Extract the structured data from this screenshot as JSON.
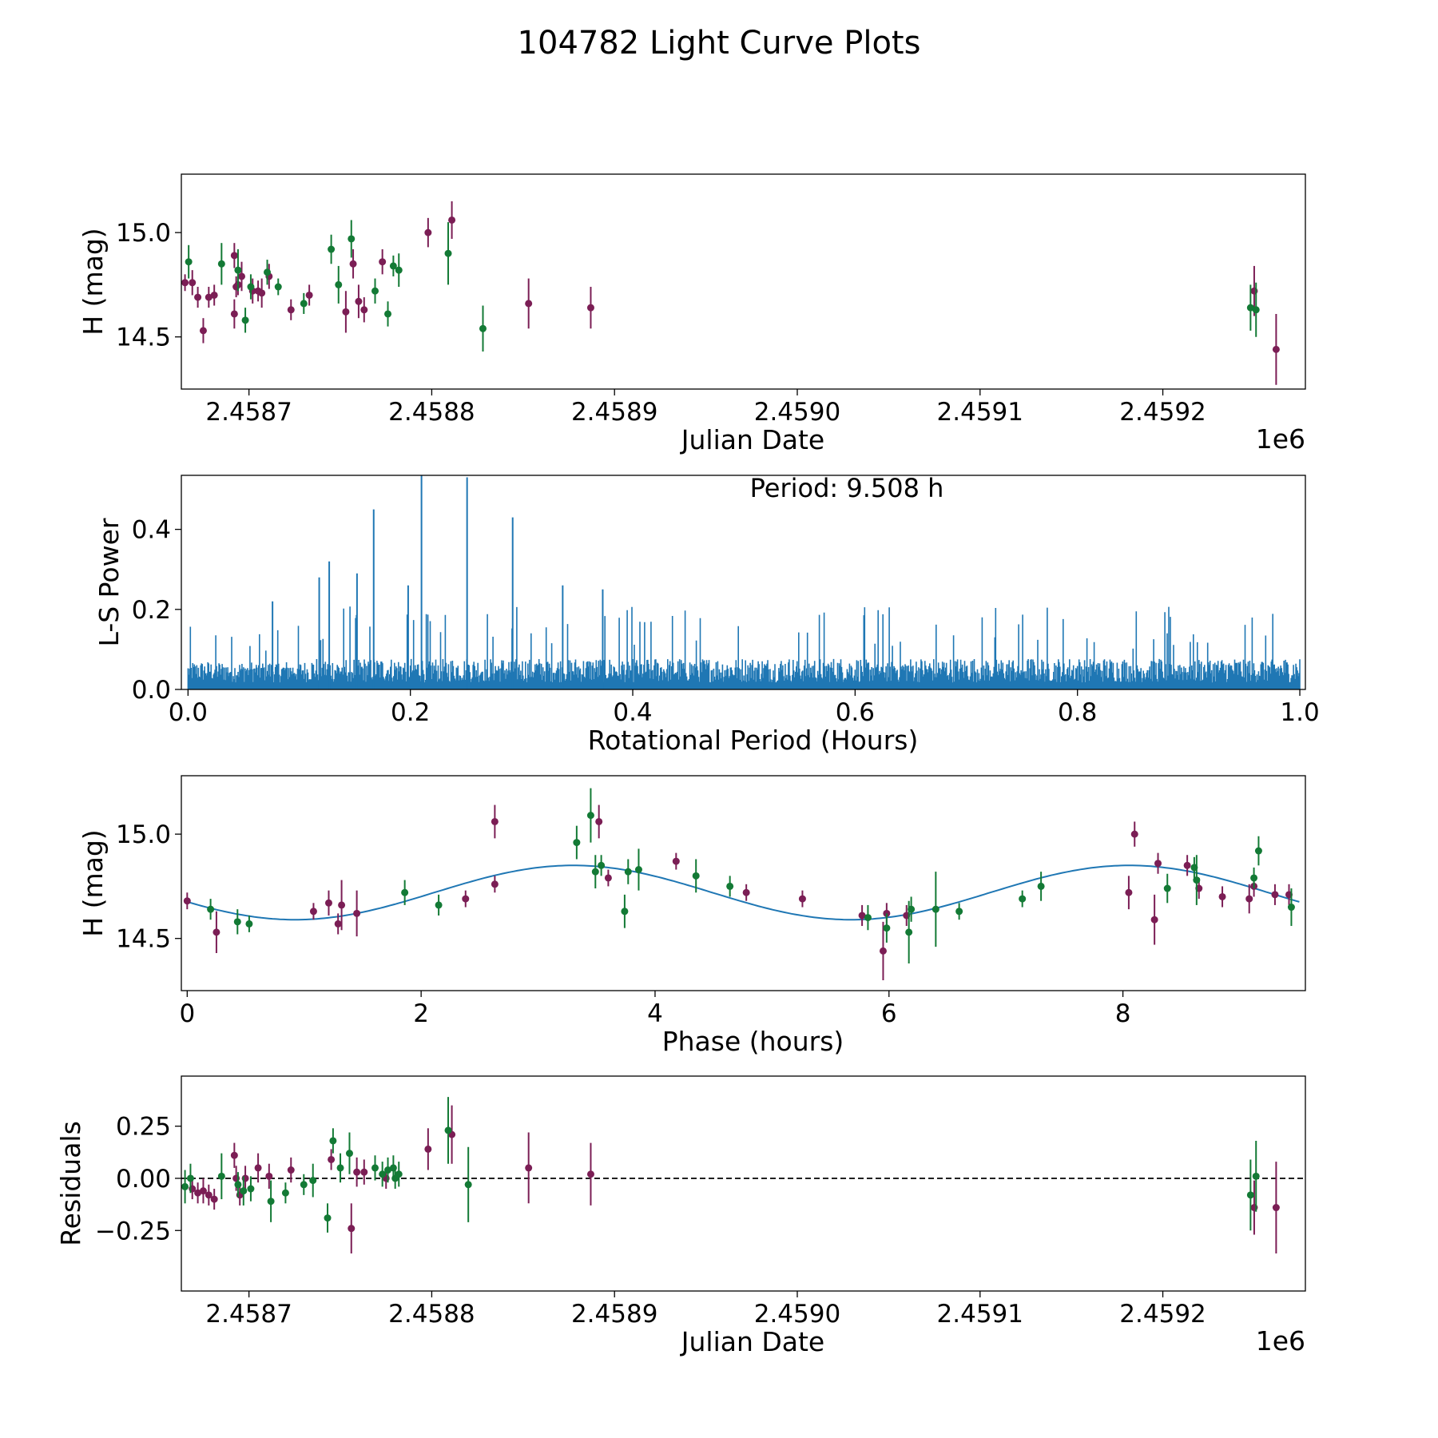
{
  "figure_title": "104782 Light Curve Plots",
  "colors": {
    "red": "#7b1e55",
    "green": "#137a35",
    "blue": "#1f77b4"
  },
  "chart_data": [
    {
      "id": "lightcurve",
      "type": "scatter",
      "xlabel": "Julian Date",
      "ylabel": "H (mag)",
      "xlim": [
        2458663,
        2459278
      ],
      "ylim": [
        14.25,
        15.28
      ],
      "x_ticks": [
        2458700,
        2458800,
        2458900,
        2459000,
        2459100,
        2459200
      ],
      "x_tick_labels": [
        "2.4587",
        "2.4588",
        "2.4589",
        "2.4590",
        "2.4591",
        "2.4592"
      ],
      "x_offset_label": "1e6",
      "y_ticks": [
        14.5,
        15.0
      ],
      "y_tick_labels": [
        "14.5",
        "15.0"
      ],
      "series": [
        {
          "name": "red",
          "x": [
            2458665,
            2458669,
            2458672,
            2458675,
            2458678,
            2458681,
            2458692,
            2458692,
            2458693,
            2458694,
            2458696,
            2458702,
            2458705,
            2458707,
            2458711,
            2458723,
            2458733,
            2458753,
            2458757,
            2458760,
            2458763,
            2458773,
            2458798,
            2458811,
            2458853,
            2458887,
            2459250,
            2459262
          ],
          "y": [
            14.76,
            14.76,
            14.69,
            14.53,
            14.69,
            14.7,
            14.89,
            14.61,
            14.74,
            14.75,
            14.79,
            14.72,
            14.72,
            14.71,
            14.79,
            14.63,
            14.7,
            14.62,
            14.85,
            14.67,
            14.63,
            14.86,
            15.0,
            15.06,
            14.66,
            14.64,
            14.72,
            14.44
          ],
          "err": [
            0.04,
            0.06,
            0.05,
            0.06,
            0.05,
            0.05,
            0.06,
            0.07,
            0.05,
            0.05,
            0.07,
            0.06,
            0.05,
            0.07,
            0.06,
            0.05,
            0.05,
            0.1,
            0.07,
            0.08,
            0.06,
            0.06,
            0.07,
            0.09,
            0.12,
            0.1,
            0.12,
            0.17
          ]
        },
        {
          "name": "green",
          "x": [
            2458667,
            2458685,
            2458694,
            2458698,
            2458701,
            2458710,
            2458716,
            2458730,
            2458745,
            2458749,
            2458756,
            2458769,
            2458776,
            2458779,
            2458782,
            2458809,
            2458828,
            2459248,
            2459251
          ],
          "y": [
            14.86,
            14.85,
            14.82,
            14.58,
            14.74,
            14.81,
            14.74,
            14.66,
            14.92,
            14.75,
            14.97,
            14.72,
            14.61,
            14.84,
            14.82,
            14.9,
            14.54,
            14.64,
            14.63
          ],
          "err": [
            0.08,
            0.1,
            0.1,
            0.06,
            0.06,
            0.06,
            0.04,
            0.05,
            0.07,
            0.09,
            0.09,
            0.06,
            0.06,
            0.05,
            0.08,
            0.15,
            0.11,
            0.11,
            0.13
          ]
        }
      ]
    },
    {
      "id": "periodogram",
      "type": "line",
      "xlabel": "Rotational Period (Hours)",
      "ylabel": "L-S Power",
      "annotation": "Period: 9.508 h",
      "xlim": [
        -0.006,
        1.005
      ],
      "ylim": [
        0.0,
        0.535
      ],
      "x_ticks": [
        0.0,
        0.2,
        0.4,
        0.6,
        0.8,
        1.0
      ],
      "x_tick_labels": [
        "0.0",
        "0.2",
        "0.4",
        "0.6",
        "0.8",
        "1.0"
      ],
      "y_ticks": [
        0.0,
        0.2,
        0.4
      ],
      "y_tick_labels": [
        "0.0",
        "0.2",
        "0.4"
      ],
      "x_range": [
        0.0,
        1.0
      ],
      "baseline_power": 0.07,
      "peaks": [
        {
          "x": 0.076,
          "y": 0.22
        },
        {
          "x": 0.118,
          "y": 0.28
        },
        {
          "x": 0.127,
          "y": 0.32
        },
        {
          "x": 0.152,
          "y": 0.29
        },
        {
          "x": 0.167,
          "y": 0.45
        },
        {
          "x": 0.198,
          "y": 0.26
        },
        {
          "x": 0.21,
          "y": 0.54
        },
        {
          "x": 0.251,
          "y": 0.53
        },
        {
          "x": 0.292,
          "y": 0.43
        },
        {
          "x": 0.337,
          "y": 0.26
        },
        {
          "x": 0.373,
          "y": 0.25
        }
      ]
    },
    {
      "id": "phased",
      "type": "scatter",
      "xlabel": "Phase (hours)",
      "ylabel": "H (mag)",
      "xlim": [
        -0.05,
        9.56
      ],
      "ylim": [
        14.25,
        15.28
      ],
      "x_ticks": [
        0,
        2,
        4,
        6,
        8
      ],
      "x_tick_labels": [
        "0",
        "2",
        "4",
        "6",
        "8"
      ],
      "y_ticks": [
        14.5,
        15.0
      ],
      "y_tick_labels": [
        "14.5",
        "15.0"
      ],
      "fit": {
        "period": 9.508,
        "mean": 14.72,
        "amplitude": 0.13,
        "peak_phase": 3.3
      },
      "series": [
        {
          "name": "red",
          "x": [
            0.0,
            0.25,
            1.08,
            1.21,
            1.29,
            1.32,
            1.45,
            2.38,
            2.63,
            2.63,
            3.52,
            3.6,
            4.18,
            4.78,
            5.26,
            5.77,
            5.95,
            5.98,
            6.15,
            8.05,
            8.1,
            8.27,
            8.3,
            8.55,
            8.65,
            8.85,
            9.08,
            9.12,
            9.3,
            9.42
          ],
          "y": [
            14.68,
            14.53,
            14.63,
            14.67,
            14.57,
            14.66,
            14.62,
            14.69,
            14.76,
            15.06,
            15.06,
            14.79,
            14.87,
            14.72,
            14.69,
            14.61,
            14.44,
            14.62,
            14.61,
            14.72,
            15.0,
            14.59,
            14.86,
            14.85,
            14.74,
            14.7,
            14.69,
            14.75,
            14.71,
            14.71
          ],
          "err": [
            0.04,
            0.1,
            0.04,
            0.06,
            0.05,
            0.12,
            0.11,
            0.04,
            0.04,
            0.08,
            0.08,
            0.04,
            0.04,
            0.04,
            0.04,
            0.05,
            0.14,
            0.05,
            0.05,
            0.08,
            0.06,
            0.12,
            0.05,
            0.05,
            0.05,
            0.05,
            0.07,
            0.05,
            0.05,
            0.05
          ]
        },
        {
          "name": "green",
          "x": [
            0.2,
            0.43,
            0.53,
            1.86,
            2.15,
            3.33,
            3.45,
            3.49,
            3.54,
            3.74,
            3.77,
            3.86,
            4.35,
            4.64,
            5.82,
            5.98,
            6.17,
            6.19,
            6.4,
            6.6,
            7.14,
            7.3,
            8.38,
            8.61,
            8.63,
            9.12,
            9.16,
            9.44
          ],
          "y": [
            14.64,
            14.58,
            14.57,
            14.72,
            14.66,
            14.96,
            15.09,
            14.82,
            14.85,
            14.63,
            14.82,
            14.83,
            14.8,
            14.75,
            14.6,
            14.55,
            14.53,
            14.64,
            14.64,
            14.63,
            14.69,
            14.75,
            14.74,
            14.84,
            14.78,
            14.79,
            14.92,
            14.65
          ],
          "err": [
            0.05,
            0.06,
            0.04,
            0.06,
            0.05,
            0.08,
            0.13,
            0.08,
            0.05,
            0.08,
            0.06,
            0.1,
            0.08,
            0.05,
            0.06,
            0.07,
            0.15,
            0.06,
            0.18,
            0.04,
            0.04,
            0.07,
            0.07,
            0.05,
            0.12,
            0.05,
            0.07,
            0.09
          ]
        }
      ]
    },
    {
      "id": "residuals",
      "type": "scatter",
      "xlabel": "Julian Date",
      "ylabel": "Residuals",
      "xlim": [
        2458663,
        2459278
      ],
      "ylim": [
        -0.54,
        0.49
      ],
      "x_ticks": [
        2458700,
        2458800,
        2458900,
        2459000,
        2459100,
        2459200
      ],
      "x_tick_labels": [
        "2.4587",
        "2.4588",
        "2.4589",
        "2.4590",
        "2.4591",
        "2.4592"
      ],
      "x_offset_label": "1e6",
      "y_ticks": [
        0.25,
        0.0,
        -0.25
      ],
      "y_tick_labels": [
        "0.25",
        "0.00",
        "−0.25"
      ],
      "zero_line": 0.0,
      "series": [
        {
          "name": "red",
          "x": [
            2458669,
            2458672,
            2458675,
            2458678,
            2458681,
            2458692,
            2458693,
            2458695,
            2458698,
            2458705,
            2458711,
            2458723,
            2458745,
            2458756,
            2458759,
            2458763,
            2458775,
            2458798,
            2458811,
            2458853,
            2458887,
            2459250,
            2459262
          ],
          "y": [
            -0.05,
            -0.07,
            -0.06,
            -0.08,
            -0.1,
            0.11,
            0.0,
            -0.08,
            0.0,
            0.05,
            0.01,
            0.04,
            0.09,
            -0.24,
            0.03,
            0.03,
            0.0,
            0.14,
            0.21,
            0.05,
            0.02,
            -0.14,
            -0.14
          ],
          "err": [
            0.05,
            0.05,
            0.06,
            0.05,
            0.05,
            0.06,
            0.06,
            0.05,
            0.06,
            0.07,
            0.06,
            0.06,
            0.05,
            0.12,
            0.07,
            0.06,
            0.05,
            0.1,
            0.14,
            0.17,
            0.15,
            0.13,
            0.22
          ]
        },
        {
          "name": "green",
          "x": [
            2458665,
            2458668,
            2458685,
            2458694,
            2458697,
            2458701,
            2458712,
            2458720,
            2458730,
            2458735,
            2458743,
            2458746,
            2458750,
            2458755,
            2458769,
            2458773,
            2458776,
            2458779,
            2458780,
            2458782,
            2458809,
            2458820,
            2459248,
            2459251
          ],
          "y": [
            -0.04,
            0.0,
            0.01,
            -0.03,
            -0.06,
            -0.05,
            -0.11,
            -0.07,
            -0.03,
            -0.01,
            -0.19,
            0.18,
            0.05,
            0.12,
            0.05,
            0.02,
            0.04,
            0.05,
            0.0,
            0.02,
            0.23,
            -0.03,
            -0.08,
            0.01
          ],
          "err": [
            0.08,
            0.07,
            0.11,
            0.06,
            0.07,
            0.06,
            0.1,
            0.05,
            0.05,
            0.08,
            0.07,
            0.06,
            0.07,
            0.1,
            0.06,
            0.06,
            0.06,
            0.06,
            0.05,
            0.06,
            0.16,
            0.18,
            0.17,
            0.17
          ]
        }
      ]
    }
  ]
}
